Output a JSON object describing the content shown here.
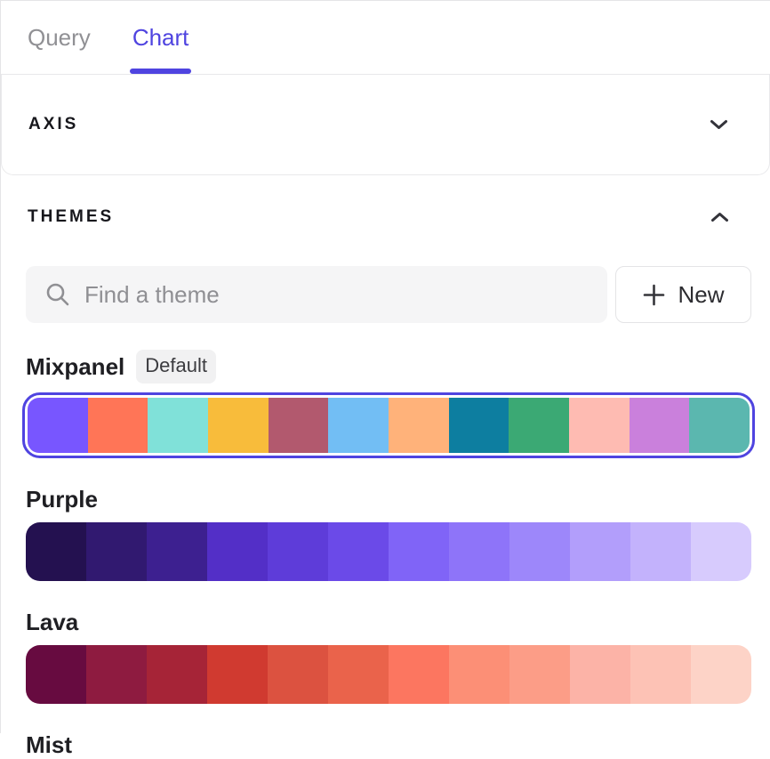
{
  "tabs": [
    {
      "label": "Query",
      "active": false
    },
    {
      "label": "Chart",
      "active": true
    }
  ],
  "axis_section": {
    "title": "AXIS",
    "collapsed": true
  },
  "themes_section": {
    "title": "THEMES",
    "collapsed": false,
    "search": {
      "placeholder": "Find a theme",
      "value": ""
    },
    "new_button": {
      "label": "New"
    },
    "items": [
      {
        "name": "Mixpanel",
        "badge": "Default",
        "selected": true,
        "colors": [
          "#7856ff",
          "#ff7557",
          "#80e1d9",
          "#f8bc3b",
          "#b2596e",
          "#72bef4",
          "#ffb27a",
          "#0d7ea0",
          "#3ba974",
          "#febbb2",
          "#ca80dc",
          "#5bb7af"
        ]
      },
      {
        "name": "Purple",
        "badge": null,
        "selected": false,
        "colors": [
          "#241150",
          "#311970",
          "#3d2090",
          "#532fc7",
          "#5e3cd9",
          "#6b4ae8",
          "#8064f7",
          "#8e74f9",
          "#9d87fa",
          "#b29efb",
          "#c3b2fc",
          "#d7cbfd"
        ]
      },
      {
        "name": "Lava",
        "badge": null,
        "selected": false,
        "colors": [
          "#670b40",
          "#8e1b40",
          "#a62437",
          "#d03a30",
          "#dc5240",
          "#ea634b",
          "#fc7660",
          "#fc8f76",
          "#fc9d87",
          "#fcb3a7",
          "#fdc2b5",
          "#fdd3c7"
        ]
      },
      {
        "name": "Mist",
        "badge": null,
        "selected": false,
        "partial": true,
        "colors": []
      }
    ]
  },
  "icons": {
    "search": "magnifier-icon",
    "axis_toggle": "chevron-down-icon",
    "themes_toggle": "chevron-up-icon",
    "new": "plus-icon"
  },
  "colors": {
    "accent": "#4f44e0",
    "tab_inactive": "#909094",
    "section_title": "#17171c",
    "search_bg": "#f5f5f6",
    "badge_bg": "#f1f1f2",
    "border": "#e8e8ea"
  }
}
